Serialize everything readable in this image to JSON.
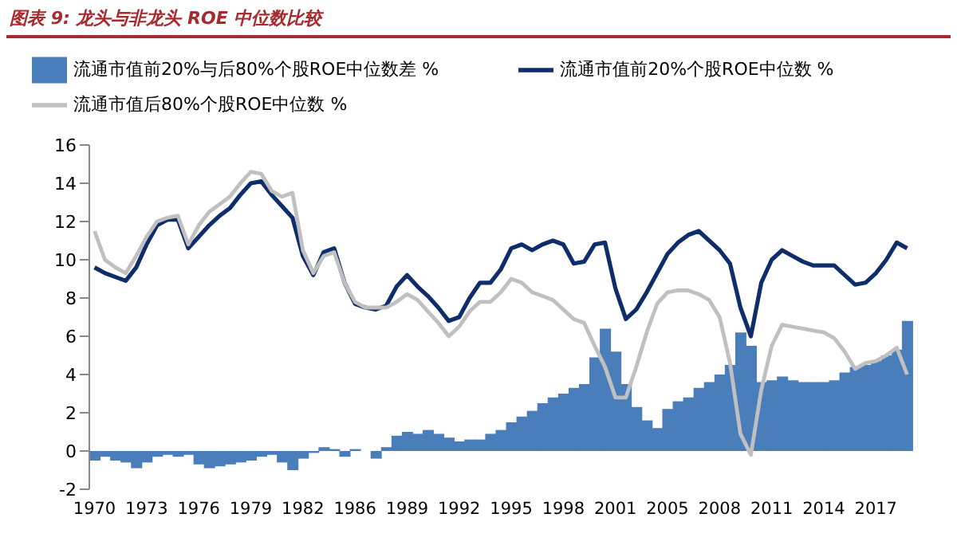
{
  "chart_data": {
    "type": "line",
    "title": "图表 9: 龙头与非龙头 ROE 中位数比较",
    "categories": [
      "1970",
      null,
      null,
      null,
      null,
      "1973",
      null,
      null,
      null,
      null,
      "1976",
      null,
      null,
      null,
      null,
      "1979",
      null,
      null,
      null,
      null,
      "1982",
      null,
      null,
      null,
      null,
      "1986",
      null,
      null,
      null,
      null,
      "1989",
      null,
      null,
      null,
      null,
      "1992",
      null,
      null,
      null,
      null,
      "1995",
      null,
      null,
      null,
      null,
      "1998",
      null,
      null,
      null,
      null,
      "2001",
      null,
      null,
      null,
      null,
      "2005",
      null,
      null,
      null,
      null,
      "2008",
      null,
      null,
      null,
      null,
      "2011",
      null,
      null,
      null,
      null,
      "2014",
      null,
      null,
      null,
      null,
      "2017",
      null,
      null,
      null
    ],
    "series": [
      {
        "name": "流通市值前20%与后80%个股ROE中位数差 %",
        "type": "bar",
        "color": "#4a7ebb",
        "values": [
          -0.5,
          -0.3,
          -0.5,
          -0.6,
          -0.9,
          -0.6,
          -0.3,
          -0.2,
          -0.3,
          -0.2,
          -0.7,
          -0.9,
          -0.8,
          -0.7,
          -0.6,
          -0.5,
          -0.3,
          -0.2,
          -0.6,
          -1.0,
          -0.4,
          -0.1,
          0.2,
          0.1,
          -0.3,
          0.1,
          0.0,
          -0.4,
          0.2,
          0.8,
          1.0,
          0.9,
          1.1,
          0.9,
          0.7,
          0.5,
          0.6,
          0.6,
          0.9,
          1.1,
          1.5,
          1.8,
          2.1,
          2.5,
          2.8,
          3.0,
          3.3,
          3.5,
          4.9,
          6.4,
          5.2,
          3.5,
          2.3,
          1.6,
          1.2,
          2.2,
          2.6,
          2.8,
          3.3,
          3.6,
          4.0,
          4.5,
          6.2,
          5.5,
          3.6,
          3.7,
          3.9,
          3.7,
          3.6,
          3.6,
          3.6,
          3.7,
          4.1,
          4.4,
          4.5,
          4.7,
          5.0,
          5.3,
          6.8
        ]
      },
      {
        "name": "流通市值前20%个股ROE中位数 %",
        "color": "#0e2d6b",
        "values": [
          9.6,
          9.3,
          9.1,
          8.9,
          9.6,
          10.8,
          11.8,
          12.1,
          12.1,
          10.6,
          11.2,
          11.8,
          12.3,
          12.7,
          13.4,
          14.0,
          14.1,
          13.4,
          12.8,
          12.2,
          10.2,
          9.2,
          10.4,
          10.6,
          8.8,
          7.7,
          7.5,
          7.4,
          7.6,
          8.6,
          9.2,
          8.6,
          8.1,
          7.5,
          6.8,
          7.0,
          8.0,
          8.8,
          8.8,
          9.5,
          10.6,
          10.8,
          10.5,
          10.8,
          11.0,
          10.8,
          9.8,
          9.9,
          10.8,
          10.9,
          8.5,
          6.9,
          7.4,
          8.3,
          9.3,
          10.3,
          10.9,
          11.3,
          11.5,
          11.0,
          10.5,
          9.8,
          7.5,
          6.0,
          8.8,
          10.0,
          10.5,
          10.2,
          9.9,
          9.7,
          9.7,
          9.7,
          9.2,
          8.7,
          8.8,
          9.3,
          10.0,
          10.9,
          10.6
        ]
      },
      {
        "name": "流通市值后80%个股ROE中位数 %",
        "color": "#c0c0c0",
        "values": [
          11.5,
          10.0,
          9.6,
          9.3,
          10.2,
          11.2,
          12.0,
          12.2,
          12.3,
          10.8,
          11.8,
          12.5,
          12.9,
          13.3,
          14.0,
          14.6,
          14.5,
          13.6,
          13.3,
          13.5,
          10.5,
          9.3,
          10.2,
          10.4,
          8.8,
          7.8,
          7.5,
          7.5,
          7.5,
          7.8,
          8.2,
          7.9,
          7.3,
          6.7,
          6.0,
          6.5,
          7.3,
          7.8,
          7.8,
          8.3,
          9.0,
          8.8,
          8.3,
          8.1,
          7.9,
          7.4,
          6.9,
          6.7,
          5.5,
          4.4,
          2.8,
          2.8,
          4.4,
          6.2,
          7.7,
          8.3,
          8.4,
          8.4,
          8.2,
          7.9,
          7.0,
          4.6,
          0.9,
          -0.2,
          3.2,
          5.5,
          6.6,
          6.5,
          6.4,
          6.3,
          6.2,
          5.9,
          5.2,
          4.3,
          4.6,
          4.7,
          5.0,
          5.4,
          4.0
        ]
      }
    ],
    "ylim": [
      -2,
      16
    ],
    "yticks": [
      -2,
      0,
      2,
      4,
      6,
      8,
      10,
      12,
      14,
      16
    ],
    "legend": "top left",
    "marker": "none",
    "line_style": "solid"
  }
}
